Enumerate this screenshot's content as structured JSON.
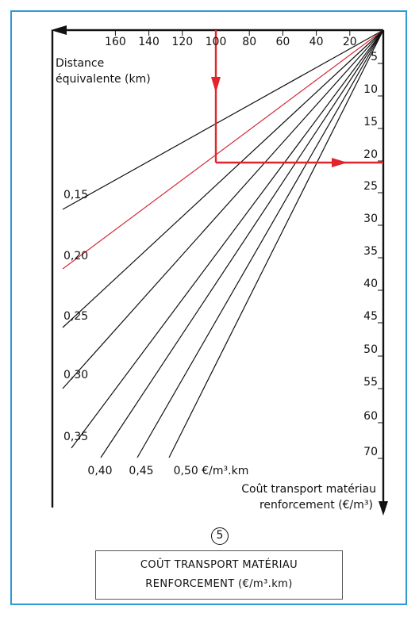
{
  "chart_data": {
    "type": "nomogram",
    "top_axis": {
      "label_line1": "Distance",
      "label_line2": "équivalente (km)",
      "ticks": [
        "160",
        "140",
        "120",
        "100",
        "80",
        "60",
        "40",
        "20"
      ],
      "tick_values": [
        160,
        140,
        120,
        100,
        80,
        60,
        40,
        20
      ],
      "range": [
        0,
        180
      ]
    },
    "right_axis": {
      "label_line1": "Coût transport matériau",
      "label_line2": "renforcement (€/m³)",
      "ticks": [
        "5",
        "10",
        "15",
        "20",
        "25",
        "30",
        "35",
        "40",
        "45",
        "50",
        "55",
        "60",
        "70"
      ],
      "tick_values": [
        5,
        10,
        15,
        20,
        25,
        30,
        35,
        40,
        45,
        50,
        55,
        60,
        70
      ]
    },
    "series": [
      {
        "name": "0,15",
        "rate": 0.15,
        "color": "#111111"
      },
      {
        "name": "0,20",
        "rate": 0.2,
        "color": "#d62b36"
      },
      {
        "name": "0,25",
        "rate": 0.25,
        "color": "#111111"
      },
      {
        "name": "0,30",
        "rate": 0.3,
        "color": "#111111"
      },
      {
        "name": "0,35",
        "rate": 0.35,
        "color": "#111111"
      },
      {
        "name": "0,40",
        "rate": 0.4,
        "color": "#111111"
      },
      {
        "name": "0,45",
        "rate": 0.45,
        "color": "#111111"
      },
      {
        "name": "0,50 €/m³.km",
        "rate": 0.5,
        "color": "#111111"
      }
    ],
    "example": {
      "distance": 100,
      "rate": 0.2,
      "cost": 20,
      "color": "#e0252f"
    }
  },
  "caption": {
    "number": "5",
    "line1": "COÛT TRANSPORT MATÉRIAU",
    "line2": "RENFORCEMENT (€/m³.km)"
  },
  "colors": {
    "frame": "#2e9bd6",
    "highlight": "#d62b36"
  }
}
